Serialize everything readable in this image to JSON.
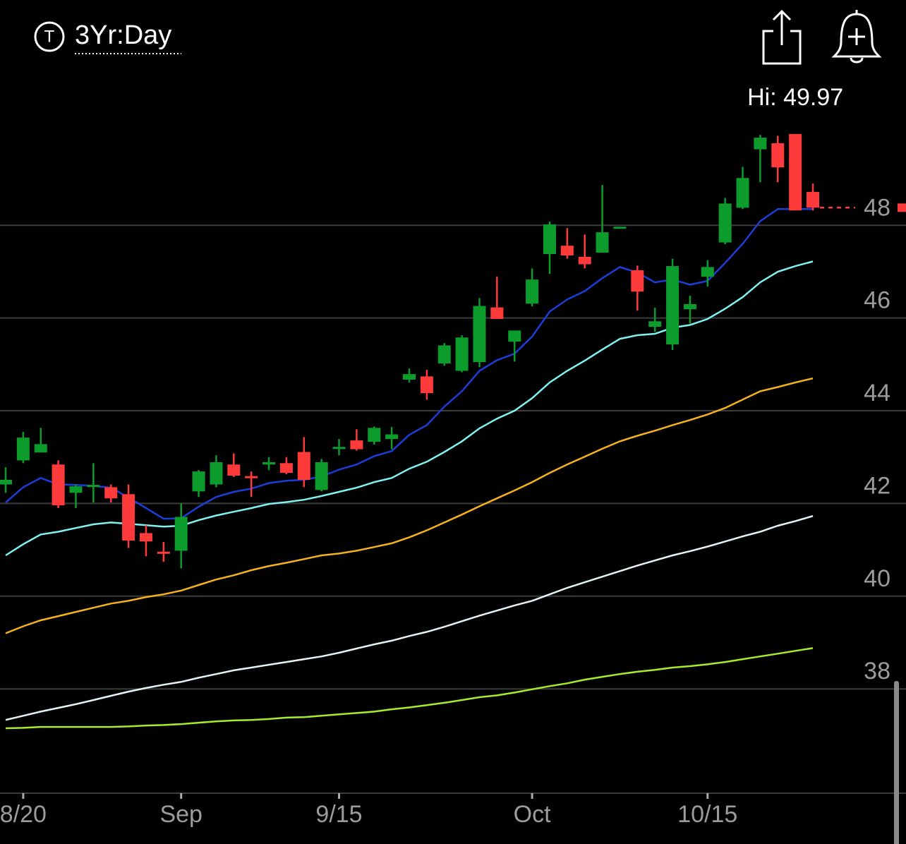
{
  "chart_data": {
    "type": "candlestick",
    "icon_letter": "T",
    "header_label": "3Yr:Day",
    "high_label": {
      "value": 49.97,
      "label": "Hi: 49.97"
    },
    "categories": [
      null,
      "8/20",
      null,
      null,
      null,
      null,
      null,
      null,
      null,
      null,
      "Sep",
      null,
      null,
      null,
      null,
      null,
      null,
      null,
      null,
      "9/15",
      null,
      null,
      null,
      null,
      null,
      null,
      null,
      null,
      null,
      null,
      "Oct",
      null,
      null,
      null,
      null,
      null,
      null,
      null,
      null,
      null,
      "10/15",
      null,
      null,
      null,
      null,
      null,
      null
    ],
    "open": [
      42.41,
      42.93,
      43.1,
      42.84,
      42.23,
      42.38,
      42.35,
      42.2,
      41.36,
      40.96,
      40.98,
      42.26,
      42.41,
      42.84,
      42.59,
      42.84,
      42.87,
      43.11,
      42.29,
      43.19,
      43.36,
      43.33,
      43.39,
      44.67,
      44.74,
      45.02,
      44.86,
      45.05,
      46.23,
      45.49,
      46.31,
      47.38,
      47.56,
      47.32,
      47.41,
      47.95,
      47.03,
      45.81,
      45.43,
      46.19,
      46.89,
      47.63,
      48.38,
      49.64,
      49.77,
      49.97,
      48.72
    ],
    "high": [
      42.78,
      43.54,
      43.63,
      42.93,
      42.41,
      42.87,
      42.41,
      42.41,
      41.53,
      41.17,
      42.0,
      42.72,
      43.04,
      43.08,
      42.69,
      43.0,
      43.0,
      43.43,
      42.96,
      43.39,
      43.6,
      43.66,
      43.65,
      44.91,
      44.88,
      45.46,
      45.63,
      46.43,
      46.89,
      45.73,
      47.07,
      48.08,
      47.94,
      47.8,
      48.87,
      47.97,
      47.13,
      46.22,
      47.28,
      46.48,
      47.25,
      48.59,
      49.26,
      49.95,
      49.93,
      49.97,
      48.9
    ],
    "low": [
      42.23,
      42.87,
      43.1,
      41.9,
      41.9,
      42.02,
      42.02,
      41.04,
      40.86,
      40.74,
      40.6,
      42.14,
      42.35,
      42.57,
      42.14,
      42.72,
      42.63,
      42.35,
      42.26,
      43.04,
      43.14,
      43.27,
      43.17,
      44.61,
      44.24,
      44.97,
      44.83,
      44.94,
      45.98,
      45.06,
      46.25,
      46.95,
      47.28,
      47.07,
      47.41,
      47.95,
      46.16,
      45.7,
      45.31,
      45.88,
      46.68,
      47.59,
      48.35,
      48.93,
      48.93,
      48.32,
      48.32
    ],
    "close": [
      42.51,
      43.42,
      43.28,
      41.96,
      42.37,
      42.4,
      42.11,
      41.2,
      41.18,
      40.93,
      41.71,
      42.69,
      42.89,
      42.6,
      42.56,
      42.89,
      42.66,
      42.51,
      42.89,
      43.22,
      43.17,
      43.63,
      43.49,
      44.79,
      44.38,
      45.41,
      45.58,
      46.26,
      45.98,
      45.73,
      46.83,
      48.02,
      47.35,
      47.16,
      47.85,
      47.97,
      46.57,
      45.93,
      47.12,
      46.3,
      47.1,
      48.47,
      49.02,
      49.89,
      49.25,
      48.32,
      48.38
    ],
    "up_color": "#0c9c2c",
    "down_color": "#ff3a3a",
    "overlays": [
      {
        "color": "#1c3ed8",
        "values": [
          42.02,
          42.35,
          42.55,
          42.41,
          42.4,
          42.38,
          42.34,
          42.13,
          41.9,
          41.67,
          41.68,
          41.93,
          42.14,
          42.25,
          42.32,
          42.44,
          42.49,
          42.51,
          42.58,
          42.73,
          42.84,
          43.02,
          43.13,
          43.48,
          43.69,
          44.09,
          44.42,
          44.86,
          45.09,
          45.23,
          45.6,
          46.14,
          46.4,
          46.58,
          46.86,
          47.1,
          46.98,
          46.77,
          46.83,
          46.72,
          46.8,
          47.19,
          47.6,
          48.09,
          48.35,
          48.35,
          48.35
        ]
      },
      {
        "color": "#7ff2f2",
        "values": [
          40.88,
          41.12,
          41.33,
          41.39,
          41.47,
          41.55,
          41.59,
          41.56,
          41.53,
          41.5,
          41.52,
          41.64,
          41.74,
          41.82,
          41.9,
          41.99,
          42.03,
          42.08,
          42.16,
          42.25,
          42.34,
          42.46,
          42.55,
          42.75,
          42.9,
          43.11,
          43.34,
          43.62,
          43.83,
          44.0,
          44.27,
          44.61,
          44.86,
          45.08,
          45.32,
          45.55,
          45.63,
          45.66,
          45.79,
          45.85,
          45.98,
          46.2,
          46.45,
          46.77,
          47.0,
          47.12,
          47.22
        ]
      },
      {
        "color": "#f5b21c",
        "values": [
          39.2,
          39.35,
          39.48,
          39.57,
          39.66,
          39.75,
          39.84,
          39.9,
          39.98,
          40.04,
          40.12,
          40.24,
          40.36,
          40.45,
          40.56,
          40.65,
          40.72,
          40.8,
          40.88,
          40.92,
          40.98,
          41.06,
          41.14,
          41.27,
          41.42,
          41.59,
          41.76,
          41.94,
          42.11,
          42.28,
          42.46,
          42.66,
          42.84,
          43.01,
          43.18,
          43.34,
          43.46,
          43.57,
          43.69,
          43.8,
          43.92,
          44.06,
          44.24,
          44.42,
          44.51,
          44.61,
          44.7
        ]
      },
      {
        "color": "#e4f4f6",
        "values": [
          37.33,
          37.42,
          37.51,
          37.59,
          37.67,
          37.76,
          37.85,
          37.94,
          38.02,
          38.09,
          38.15,
          38.24,
          38.32,
          38.4,
          38.46,
          38.52,
          38.58,
          38.64,
          38.7,
          38.78,
          38.87,
          38.96,
          39.04,
          39.14,
          39.23,
          39.34,
          39.46,
          39.58,
          39.69,
          39.8,
          39.9,
          40.04,
          40.18,
          40.3,
          40.42,
          40.54,
          40.66,
          40.77,
          40.88,
          40.97,
          41.07,
          41.18,
          41.29,
          41.39,
          41.52,
          41.62,
          41.73
        ]
      },
      {
        "color": "#a6ec2a",
        "values": [
          37.15,
          37.16,
          37.18,
          37.18,
          37.18,
          37.18,
          37.18,
          37.19,
          37.21,
          37.22,
          37.24,
          37.27,
          37.3,
          37.32,
          37.33,
          37.35,
          37.38,
          37.39,
          37.42,
          37.45,
          37.48,
          37.51,
          37.56,
          37.6,
          37.65,
          37.7,
          37.76,
          37.82,
          37.86,
          37.92,
          37.99,
          38.06,
          38.12,
          38.2,
          38.26,
          38.32,
          38.37,
          38.41,
          38.46,
          38.49,
          38.53,
          38.58,
          38.64,
          38.7,
          38.76,
          38.82,
          38.88
        ]
      }
    ],
    "ylim": [
      35.75,
      52.86
    ],
    "yticks": [
      38,
      40,
      42,
      44,
      46,
      48
    ],
    "grid": true
  }
}
